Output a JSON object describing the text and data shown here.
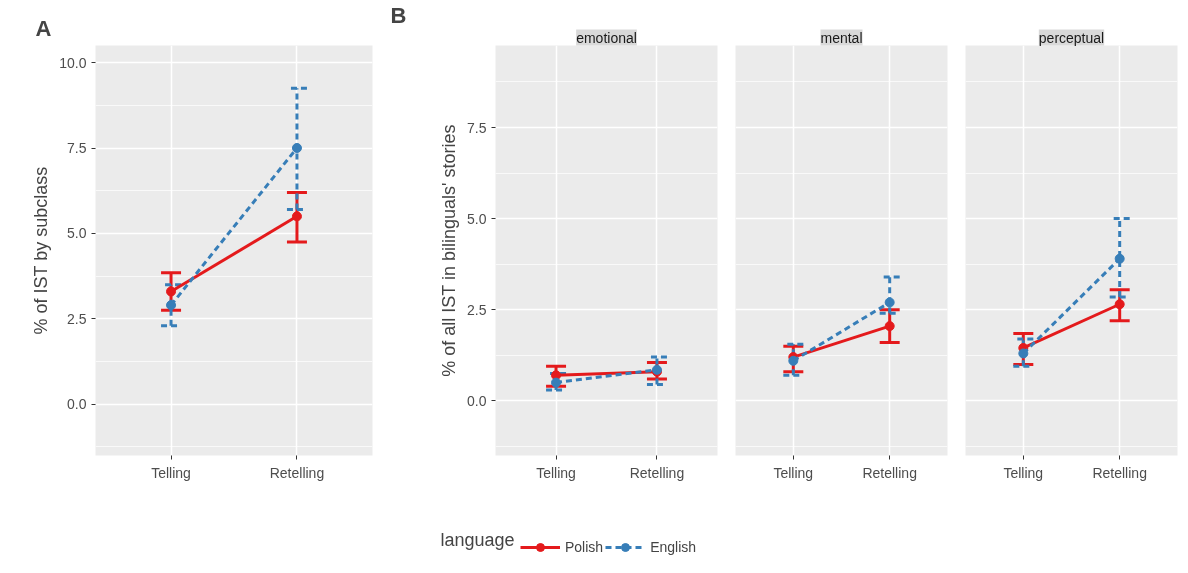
{
  "chart_data": [
    {
      "type": "line",
      "title": "A",
      "ylabel": "% of IST by subclass",
      "categories": [
        "Telling",
        "Retelling"
      ],
      "ylim": [
        -1.5,
        10.5
      ],
      "yticks": [
        {
          "value": 0,
          "label": "0.0"
        },
        {
          "value": 2.5,
          "label": "2.5"
        },
        {
          "value": 5,
          "label": "5.0"
        },
        {
          "value": 7.5,
          "label": "7.5"
        },
        {
          "value": 10,
          "label": "10.0"
        }
      ],
      "grid": true,
      "marker": "circle",
      "legend": "bottom",
      "legend_title": "language",
      "series": [
        {
          "name": "Polish",
          "color": "#e41a1c",
          "line_style": "solid",
          "values": [
            3.3,
            5.5
          ],
          "errors": [
            [
              2.75,
              3.85
            ],
            [
              4.75,
              6.2
            ]
          ]
        },
        {
          "name": "English",
          "color": "#377eb8",
          "line_style": "dashed",
          "values": [
            2.9,
            7.5
          ],
          "errors": [
            [
              2.3,
              3.5
            ],
            [
              5.7,
              9.25
            ]
          ]
        }
      ]
    },
    {
      "type": "line",
      "title": "emotional",
      "annotations": [
        "B"
      ],
      "ylabel": "% of all IST in bilinguals' stories",
      "categories": [
        "Telling",
        "Retelling"
      ],
      "ylim": [
        -1.5,
        9.75
      ],
      "yticks": [
        {
          "value": 0,
          "label": "0.0"
        },
        {
          "value": 2.5,
          "label": "2.5"
        },
        {
          "value": 5,
          "label": "5.0"
        },
        {
          "value": 7.5,
          "label": "7.5"
        }
      ],
      "grid": true,
      "marker": "circle",
      "series": [
        {
          "color": "#e41a1c",
          "line_style": "solid",
          "values": [
            0.7,
            0.8
          ],
          "errors": [
            [
              0.4,
              0.95
            ],
            [
              0.6,
              1.05
            ]
          ]
        },
        {
          "color": "#377eb8",
          "line_style": "dashed",
          "values": [
            0.5,
            0.85
          ],
          "errors": [
            [
              0.3,
              0.75
            ],
            [
              0.45,
              1.2
            ]
          ]
        }
      ]
    },
    {
      "type": "line",
      "title": "mental",
      "categories": [
        "Telling",
        "Retelling"
      ],
      "ylim": [
        -1.5,
        9.75
      ],
      "yticks": [
        {
          "value": 0,
          "label": null
        },
        {
          "value": 2.5,
          "label": null
        },
        {
          "value": 5,
          "label": null
        },
        {
          "value": 7.5,
          "label": null
        }
      ],
      "tick_labels": "x",
      "grid": true,
      "marker": "circle",
      "series": [
        {
          "color": "#e41a1c",
          "line_style": "solid",
          "values": [
            1.2,
            2.05
          ],
          "errors": [
            [
              0.8,
              1.5
            ],
            [
              1.6,
              2.5
            ]
          ]
        },
        {
          "color": "#377eb8",
          "line_style": "dashed",
          "values": [
            1.1,
            2.7
          ],
          "errors": [
            [
              0.7,
              1.55
            ],
            [
              2.4,
              3.4
            ]
          ]
        }
      ]
    },
    {
      "type": "line",
      "title": "perceptual",
      "categories": [
        "Telling",
        "Retelling"
      ],
      "ylim": [
        -1.5,
        9.75
      ],
      "yticks": [
        {
          "value": 0,
          "label": null
        },
        {
          "value": 2.5,
          "label": null
        },
        {
          "value": 5,
          "label": null
        },
        {
          "value": 7.5,
          "label": null
        }
      ],
      "tick_labels": "x",
      "grid": true,
      "marker": "circle",
      "series": [
        {
          "color": "#e41a1c",
          "line_style": "solid",
          "values": [
            1.45,
            2.65
          ],
          "errors": [
            [
              1.0,
              1.85
            ],
            [
              2.2,
              3.05
            ]
          ]
        },
        {
          "color": "#377eb8",
          "line_style": "dashed",
          "values": [
            1.3,
            3.9
          ],
          "errors": [
            [
              0.95,
              1.7
            ],
            [
              2.85,
              5.0
            ]
          ]
        }
      ]
    }
  ]
}
